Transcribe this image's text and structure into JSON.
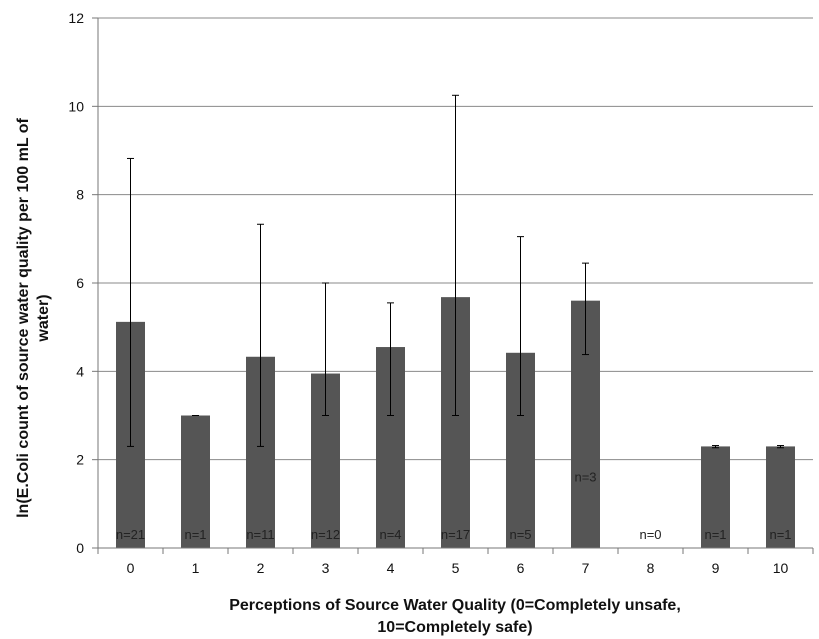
{
  "chart_data": {
    "type": "bar",
    "title": "",
    "xlabel_lines": [
      "Perceptions of Source Water Quality (0=Completely unsafe,",
      "10=Completely safe)"
    ],
    "ylabel_lines": [
      "ln(E.Coli count of source water quality per 100 mL of",
      "water)"
    ],
    "ylim": [
      0,
      12
    ],
    "yticks": [
      0,
      2,
      4,
      6,
      8,
      10,
      12
    ],
    "grid": true,
    "legend": "none",
    "categories": [
      "0",
      "1",
      "2",
      "3",
      "4",
      "5",
      "6",
      "7",
      "8",
      "9",
      "10"
    ],
    "values": [
      5.12,
      3.0,
      4.33,
      3.95,
      4.55,
      5.68,
      4.42,
      5.6,
      0,
      2.3,
      2.3
    ],
    "error_low": [
      2.3,
      3.0,
      2.3,
      3.0,
      3.0,
      3.0,
      3.0,
      4.38,
      null,
      2.27,
      2.27
    ],
    "error_high": [
      8.82,
      3.0,
      7.33,
      6.0,
      5.55,
      10.25,
      7.05,
      6.45,
      null,
      2.32,
      2.32
    ],
    "n_labels": [
      "n=21",
      "n=1",
      "n=11",
      "n=12",
      "n=4",
      "n=17",
      "n=5",
      "n=3",
      "n=0",
      "n=1",
      "n=1"
    ],
    "n_label_y": [
      0.3,
      0.3,
      0.3,
      0.3,
      0.3,
      0.3,
      0.3,
      1.6,
      0.3,
      0.3,
      0.3
    ],
    "colors": {
      "bar": "#555555",
      "grid": "#8a8a8a",
      "axis": "#777777",
      "error": "#000000"
    }
  }
}
